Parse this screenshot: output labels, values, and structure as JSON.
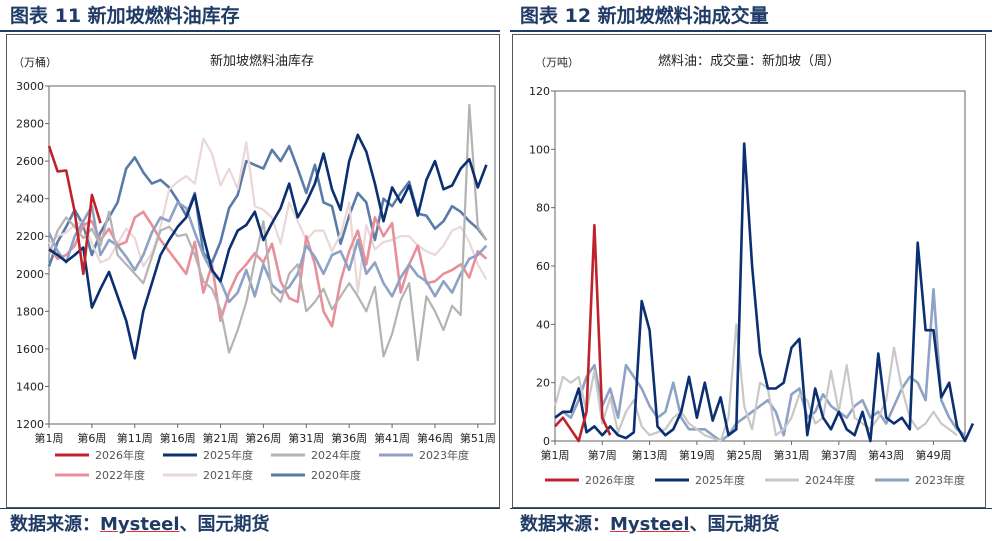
{
  "figures": {
    "left_caption": "图表 11 新加坡燃料油库存",
    "right_caption": "图表 12 新加坡燃料油成交量",
    "left_source_prefix": "数据来源：",
    "left_source_link": "Mysteel",
    "left_source_suffix": "、国元期货",
    "right_source_prefix": "数据来源：",
    "right_source_link": "Mysteel",
    "right_source_suffix": "、国元期货"
  },
  "chart_data": [
    {
      "type": "line",
      "title": "新加坡燃料油库存",
      "ylabel": "（万桶）",
      "xlabel": "",
      "ylim": [
        1200,
        3000
      ],
      "yticks": [
        1200,
        1400,
        1600,
        1800,
        2000,
        2200,
        2400,
        2600,
        2800,
        3000
      ],
      "xlim": [
        1,
        53
      ],
      "x_tick_weeks": [
        1,
        6,
        11,
        16,
        21,
        26,
        31,
        36,
        41,
        46,
        51
      ],
      "x_tick_labels": [
        "第1周",
        "第6周",
        "第11周",
        "第16周",
        "第21周",
        "第26周",
        "第31周",
        "第36周",
        "第41周",
        "第46周",
        "第51周"
      ],
      "legend_position": "bottom",
      "series": [
        {
          "name": "2026年度",
          "color": "#c0222c",
          "width": 2.6,
          "values": [
            2680,
            2545,
            2550,
            2330,
            2000,
            2420,
            2270
          ]
        },
        {
          "name": "2025年度",
          "color": "#0b2f70",
          "width": 2.6,
          "values": [
            2130,
            2100,
            2065,
            2100,
            2140,
            1820,
            1920,
            2010,
            1880,
            1750,
            1550,
            1800,
            1950,
            2100,
            2180,
            2250,
            2300,
            2420,
            2200,
            2020,
            1960,
            2130,
            2230,
            2260,
            2330,
            2180,
            2270,
            2350,
            2480,
            2300,
            2380,
            2480,
            2640,
            2450,
            2340,
            2600,
            2740,
            2650,
            2480,
            2280,
            2460,
            2380,
            2470,
            2310,
            2500,
            2600,
            2450,
            2470,
            2560,
            2610,
            2460,
            2580
          ]
        },
        {
          "name": "2024年度",
          "color": "#b3b3b3",
          "width": 2.2,
          "values": [
            2100,
            2230,
            2300,
            2250,
            2190,
            2240,
            2150,
            2330,
            2100,
            2050,
            2000,
            1950,
            2090,
            2230,
            2250,
            2200,
            2210,
            2100,
            1960,
            1920,
            1810,
            1580,
            1700,
            1850,
            2070,
            2280,
            1900,
            1850,
            2000,
            2050,
            1800,
            1850,
            1920,
            1810,
            1880,
            1950,
            1880,
            1800,
            1930,
            1560,
            1680,
            1860,
            1950,
            1540,
            1880,
            1800,
            1700,
            1830,
            1780,
            2900,
            2250,
            2180
          ]
        },
        {
          "name": "2023年度",
          "color": "#8da2c4",
          "width": 2.6,
          "values": [
            2220,
            2120,
            2060,
            2200,
            2280,
            2360,
            2100,
            2180,
            2150,
            2090,
            2020,
            2100,
            2220,
            2300,
            2280,
            2380,
            2350,
            2220,
            2100,
            2010,
            1960,
            1850,
            1900,
            2020,
            1880,
            2050,
            1940,
            1900,
            1930,
            2000,
            2150,
            2090,
            2000,
            2100,
            2120,
            2020,
            2180,
            2000,
            2060,
            1950,
            1880,
            1980,
            2050,
            1990,
            1960,
            1880,
            1960,
            1900,
            2000,
            2080,
            2100,
            2150
          ]
        },
        {
          "name": "2022年度",
          "color": "#e8909a",
          "width": 2.6,
          "values": [
            2140,
            2080,
            2100,
            2150,
            2260,
            2280,
            2180,
            2240,
            2150,
            2170,
            2300,
            2330,
            2260,
            2180,
            2120,
            2060,
            2000,
            2170,
            1900,
            2050,
            1750,
            1900,
            2000,
            2050,
            2110,
            2060,
            2160,
            1960,
            1870,
            1850,
            2200,
            2050,
            1800,
            1720,
            1960,
            2120,
            2230,
            2050,
            2300,
            2200,
            2270,
            1900,
            2050,
            2150,
            1950,
            1960,
            2000,
            2020,
            2050,
            1980,
            2120,
            2080
          ]
        },
        {
          "name": "2021年度",
          "color": "#ead7d9",
          "width": 2.2,
          "values": [
            2160,
            2200,
            2220,
            2260,
            2280,
            2160,
            2060,
            2080,
            2160,
            2240,
            2190,
            2040,
            2110,
            2250,
            2450,
            2490,
            2520,
            2480,
            2720,
            2640,
            2470,
            2560,
            2450,
            2700,
            2360,
            2340,
            2300,
            2160,
            2380,
            2280,
            2180,
            2230,
            2230,
            2120,
            2210,
            2380,
            1900,
            2260,
            2130,
            2170,
            2180,
            2200,
            2200,
            2150,
            2120,
            2100,
            2150,
            2230,
            2250,
            2170,
            2050,
            1970
          ]
        },
        {
          "name": "2020年度",
          "color": "#5a7aa8",
          "width": 2.6,
          "values": [
            2040,
            2170,
            2250,
            2340,
            2260,
            2100,
            2220,
            2300,
            2380,
            2560,
            2620,
            2540,
            2480,
            2500,
            2460,
            2390,
            2310,
            2430,
            2110,
            2060,
            2170,
            2350,
            2420,
            2600,
            2580,
            2560,
            2660,
            2600,
            2680,
            2560,
            2430,
            2580,
            2380,
            2360,
            2160,
            2310,
            2430,
            2380,
            2180,
            2400,
            2360,
            2430,
            2490,
            2320,
            2310,
            2240,
            2280,
            2360,
            2330,
            2280,
            2240,
            2180
          ]
        }
      ]
    },
    {
      "type": "line",
      "title": "燃料油：成交量：新加坡（周）",
      "ylabel": "（万吨）",
      "xlabel": "",
      "ylim": [
        0,
        120
      ],
      "yticks": [
        0,
        20,
        40,
        60,
        80,
        100,
        120
      ],
      "xlim": [
        1,
        53
      ],
      "x_tick_weeks": [
        1,
        7,
        13,
        19,
        25,
        31,
        37,
        43,
        49
      ],
      "x_tick_labels": [
        "第1周",
        "第7周",
        "第13周",
        "第19周",
        "第25周",
        "第31周",
        "第37周",
        "第43周",
        "第49周"
      ],
      "legend_position": "bottom",
      "series": [
        {
          "name": "2026年度",
          "color": "#c0222c",
          "width": 2.6,
          "values": [
            5,
            8,
            4,
            0,
            10,
            74,
            8,
            2
          ]
        },
        {
          "name": "2025年度",
          "color": "#0b2f70",
          "width": 2.6,
          "values": [
            8,
            10,
            10,
            18,
            3,
            5,
            2,
            5,
            2,
            1,
            3,
            48,
            38,
            5,
            2,
            4,
            10,
            22,
            8,
            20,
            7,
            15,
            2,
            4,
            102,
            60,
            30,
            18,
            18,
            20,
            32,
            35,
            2,
            18,
            8,
            4,
            10,
            4,
            2,
            10,
            0,
            30,
            8,
            6,
            8,
            4,
            68,
            38,
            38,
            15,
            20,
            5,
            0,
            6
          ]
        },
        {
          "name": "2024年度",
          "color": "#c8c8c8",
          "width": 2.2,
          "values": [
            12,
            22,
            20,
            22,
            10,
            24,
            6,
            15,
            3,
            10,
            14,
            5,
            2,
            3,
            4,
            8,
            10,
            6,
            4,
            2,
            1,
            0,
            8,
            40,
            12,
            4,
            20,
            18,
            2,
            4,
            8,
            16,
            14,
            6,
            8,
            24,
            10,
            26,
            8,
            6,
            4,
            8,
            14,
            32,
            18,
            8,
            4,
            6,
            10,
            6,
            4,
            2
          ]
        },
        {
          "name": "2023年度",
          "color": "#8da2c4",
          "width": 2.6,
          "values": [
            8,
            10,
            8,
            14,
            22,
            26,
            12,
            18,
            8,
            26,
            22,
            18,
            12,
            8,
            10,
            20,
            8,
            4,
            4,
            4,
            2,
            0,
            2,
            6,
            8,
            10,
            12,
            14,
            10,
            2,
            16,
            18,
            8,
            10,
            16,
            12,
            10,
            8,
            12,
            14,
            8,
            10,
            6,
            12,
            18,
            22,
            20,
            14,
            52,
            14,
            8,
            4,
            2
          ]
        }
      ]
    }
  ]
}
